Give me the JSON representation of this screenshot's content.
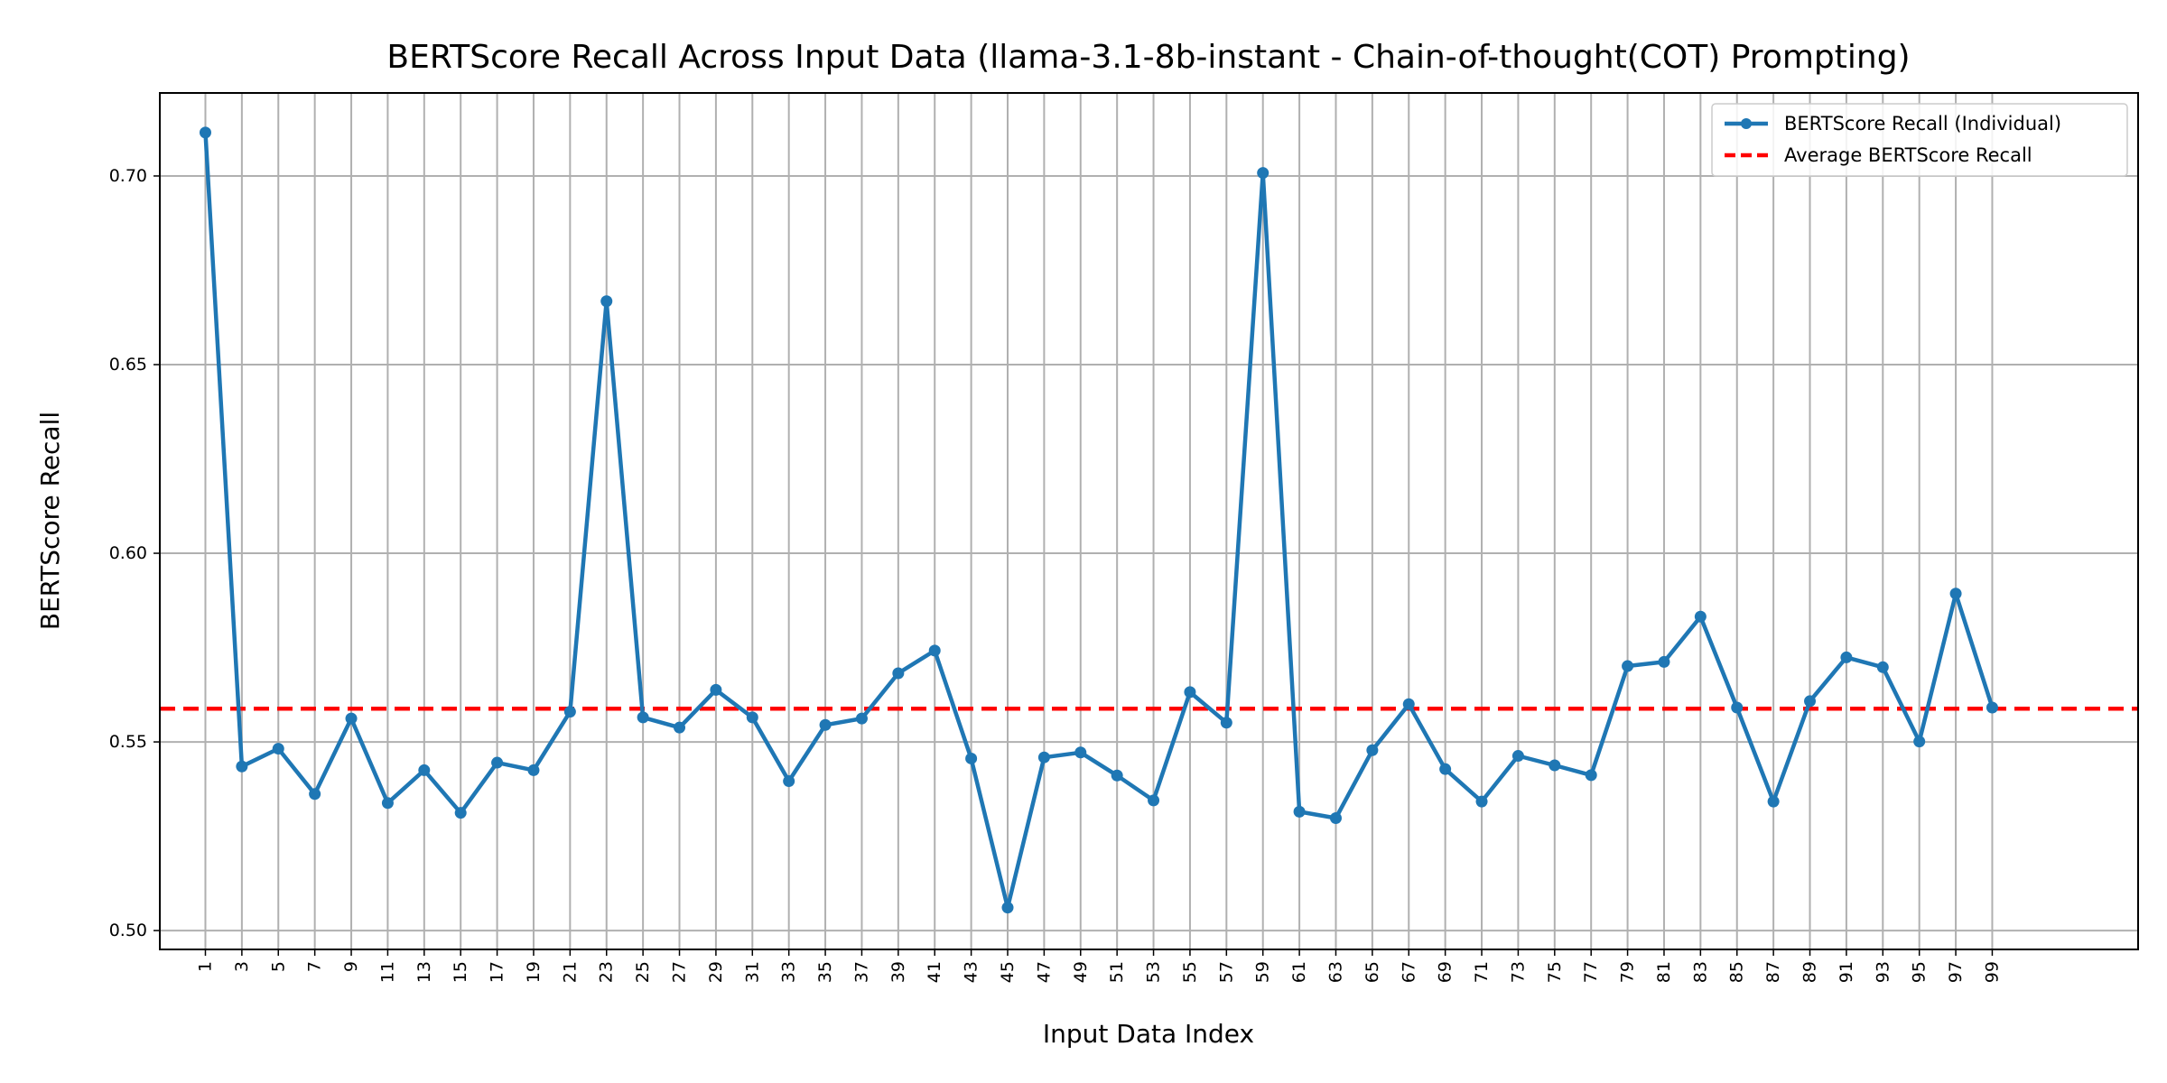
{
  "chart_data": {
    "type": "line",
    "title": "BERTScore Recall Across Input Data (llama-3.1-8b-instant - Chain-of-thought(COT) Prompting)",
    "xlabel": "Input Data Index",
    "ylabel": "BERTScore Recall",
    "xlim": [
      -1.5,
      107
    ],
    "ylim": [
      0.495,
      0.722
    ],
    "xticks": [
      1,
      3,
      5,
      7,
      9,
      11,
      13,
      15,
      17,
      19,
      21,
      23,
      25,
      27,
      29,
      31,
      33,
      35,
      37,
      39,
      41,
      43,
      45,
      47,
      49,
      51,
      53,
      55,
      57,
      59,
      61,
      63,
      65,
      67,
      69,
      71,
      73,
      75,
      77,
      79,
      81,
      83,
      85,
      87,
      89,
      91,
      93,
      95,
      97,
      99
    ],
    "yticks": [
      0.5,
      0.55,
      0.6,
      0.65,
      0.7
    ],
    "ytick_labels": [
      "0.50",
      "0.55",
      "0.60",
      "0.65",
      "0.70"
    ],
    "grid": true,
    "legend_position": "top-right",
    "series": [
      {
        "name": "BERTScore Recall (Individual)",
        "color": "#1f77b4",
        "x": [
          1,
          3,
          5,
          7,
          9,
          11,
          13,
          15,
          17,
          19,
          21,
          23,
          25,
          27,
          29,
          31,
          33,
          35,
          37,
          39,
          41,
          43,
          45,
          47,
          49,
          51,
          53,
          55,
          57,
          59,
          61,
          63,
          65,
          67,
          69,
          71,
          73,
          75,
          77,
          79,
          81,
          83,
          85,
          87,
          89,
          91,
          93,
          95,
          97,
          99
        ],
        "values": [
          0.7115,
          0.5435,
          0.5482,
          0.5362,
          0.5562,
          0.5338,
          0.5425,
          0.5312,
          0.5445,
          0.5425,
          0.558,
          0.6668,
          0.5565,
          0.5538,
          0.5638,
          0.5565,
          0.5396,
          0.5545,
          0.5562,
          0.5682,
          0.5742,
          0.5456,
          0.5061,
          0.5459,
          0.5472,
          0.5411,
          0.5345,
          0.5632,
          0.5551,
          0.7008,
          0.5315,
          0.5298,
          0.5478,
          0.56,
          0.5428,
          0.5342,
          0.5463,
          0.5438,
          0.5412,
          0.5701,
          0.5712,
          0.5832,
          0.5591,
          0.5342,
          0.5608,
          0.5724,
          0.5698,
          0.5501,
          0.5893,
          0.5591
        ]
      }
    ],
    "average": {
      "name": "Average BERTScore Recall",
      "value": 0.5588,
      "color": "#ff0000"
    }
  }
}
